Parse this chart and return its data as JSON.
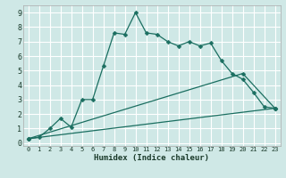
{
  "xlabel": "Humidex (Indice chaleur)",
  "ylabel": "",
  "bg_color": "#cfe8e6",
  "line_color": "#1a6e60",
  "grid_color": "#ffffff",
  "xlim": [
    -0.5,
    23.5
  ],
  "ylim": [
    -0.2,
    9.5
  ],
  "xticks": [
    0,
    1,
    2,
    3,
    4,
    5,
    6,
    7,
    8,
    9,
    10,
    11,
    12,
    13,
    14,
    15,
    16,
    17,
    18,
    19,
    20,
    21,
    22,
    23
  ],
  "yticks": [
    0,
    1,
    2,
    3,
    4,
    5,
    6,
    7,
    8,
    9
  ],
  "line1_x": [
    0,
    1,
    2,
    3,
    4,
    5,
    6,
    7,
    8,
    9,
    10,
    11,
    12,
    13,
    14,
    15,
    16,
    17,
    18,
    19,
    20,
    21,
    22,
    23
  ],
  "line1_y": [
    0.3,
    0.4,
    1.0,
    1.7,
    1.1,
    3.0,
    3.0,
    5.3,
    7.6,
    7.5,
    9.0,
    7.6,
    7.5,
    7.0,
    6.7,
    7.0,
    6.7,
    6.9,
    5.7,
    4.8,
    4.4,
    3.5,
    2.5,
    2.4
  ],
  "line2_x": [
    0,
    20,
    23
  ],
  "line2_y": [
    0.3,
    4.8,
    2.4
  ],
  "line3_x": [
    0,
    23
  ],
  "line3_y": [
    0.3,
    2.4
  ],
  "marker": "D",
  "markersize": 2.5,
  "linewidth": 0.9
}
